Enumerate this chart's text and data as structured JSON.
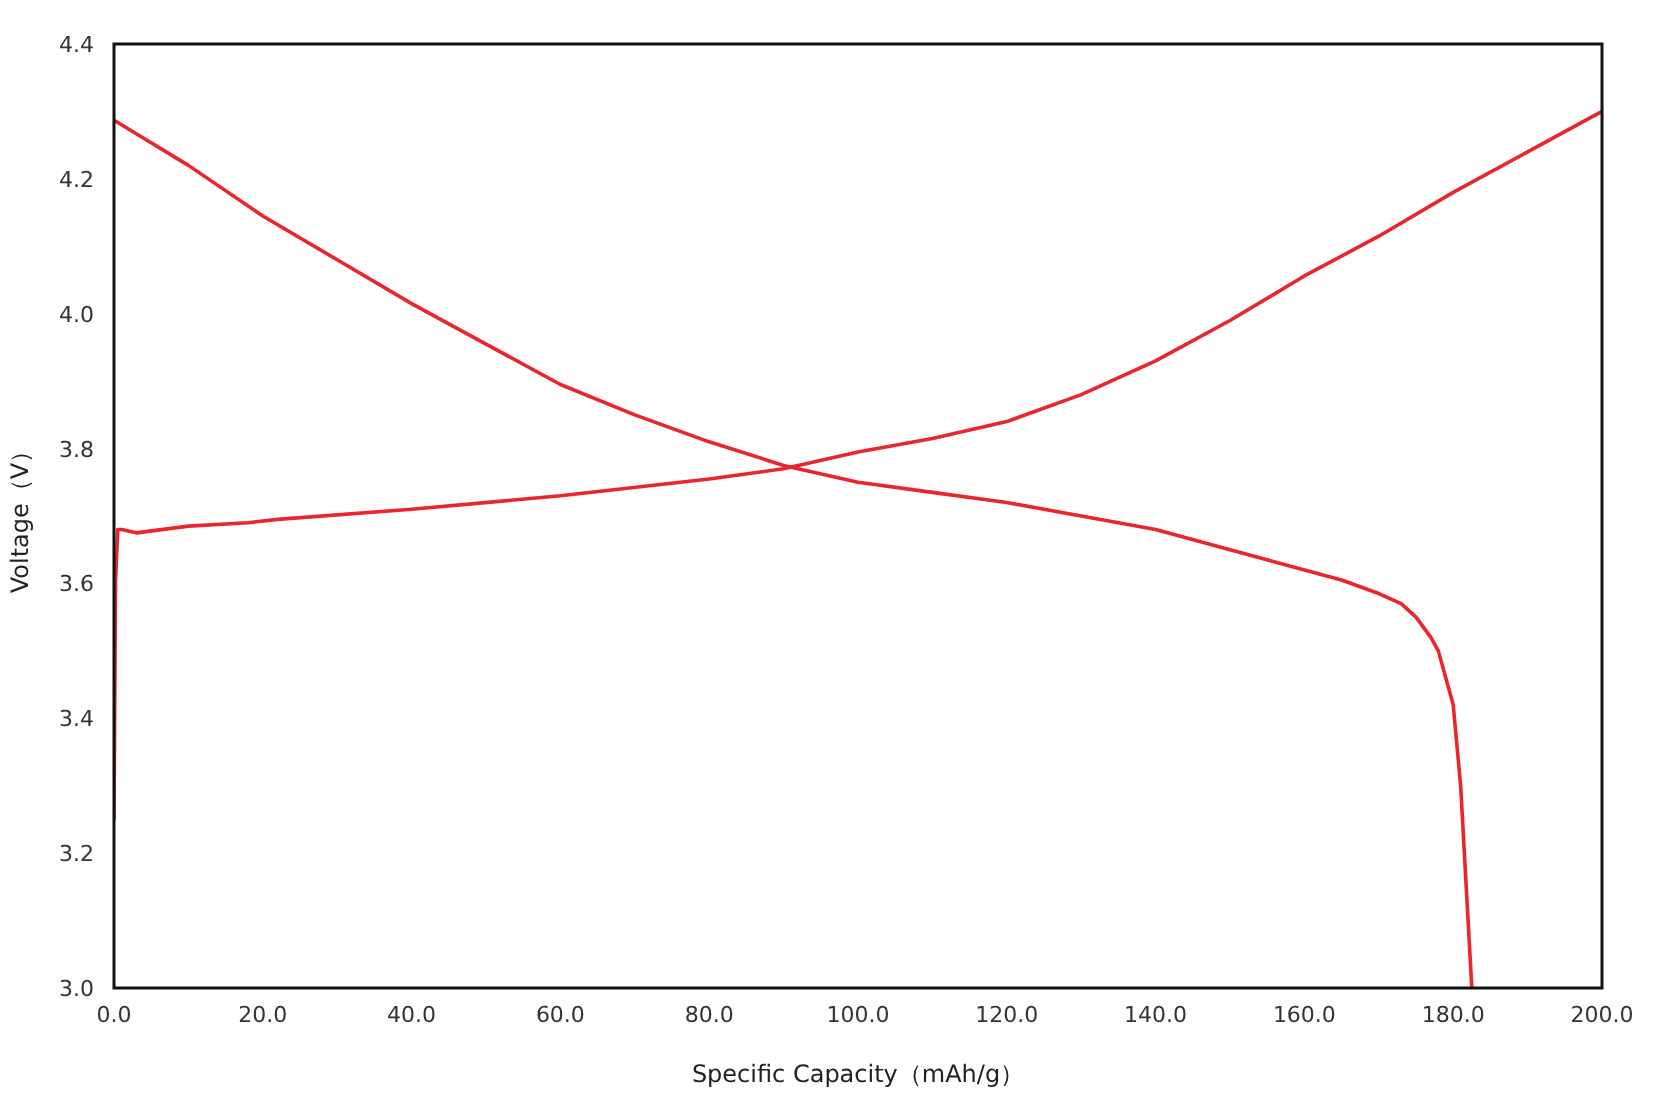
{
  "chart_data": {
    "type": "line",
    "xlabel": "Specific Capacity（mAh/g）",
    "ylabel": "Voltage（V）",
    "xlim": [
      0,
      200
    ],
    "ylim": [
      3.0,
      4.4
    ],
    "xticks": [
      {
        "value": 0,
        "label": "0.0"
      },
      {
        "value": 20,
        "label": "20.0"
      },
      {
        "value": 40,
        "label": "40.0"
      },
      {
        "value": 60,
        "label": "60.0"
      },
      {
        "value": 80,
        "label": "80.0"
      },
      {
        "value": 100,
        "label": "100.0"
      },
      {
        "value": 120,
        "label": "120.0"
      },
      {
        "value": 140,
        "label": "140.0"
      },
      {
        "value": 160,
        "label": "160.0"
      },
      {
        "value": 180,
        "label": "180.0"
      },
      {
        "value": 200,
        "label": "200.0"
      }
    ],
    "yticks": [
      {
        "value": 3.0,
        "label": "3.0"
      },
      {
        "value": 3.2,
        "label": "3.2"
      },
      {
        "value": 3.4,
        "label": "3.4"
      },
      {
        "value": 3.6,
        "label": "3.6"
      },
      {
        "value": 3.8,
        "label": "3.8"
      },
      {
        "value": 4.0,
        "label": "4.0"
      },
      {
        "value": 4.2,
        "label": "4.2"
      },
      {
        "value": 4.4,
        "label": "4.4"
      }
    ],
    "marker": "none",
    "line_style": "solid",
    "series": [
      {
        "color": "#e8262b",
        "x": [
          0,
          0.2,
          0.5,
          1,
          3,
          10,
          18,
          22,
          40,
          60,
          80,
          90,
          100,
          110,
          120,
          130,
          140,
          150,
          160,
          170,
          180,
          190,
          200
        ],
        "values": [
          3.25,
          3.6,
          3.68,
          3.68,
          3.675,
          3.685,
          3.69,
          3.695,
          3.71,
          3.73,
          3.755,
          3.77,
          3.795,
          3.815,
          3.84,
          3.88,
          3.93,
          3.99,
          4.056,
          4.115,
          4.18,
          4.24,
          4.3
        ]
      },
      {
        "color": "#e8262b",
        "x": [
          0,
          10,
          20,
          30,
          40,
          50,
          60,
          70,
          80,
          90,
          100,
          110,
          120,
          130,
          140,
          150,
          160,
          165,
          170,
          173,
          175,
          177,
          178,
          179,
          180,
          181,
          182,
          182.5
        ],
        "values": [
          4.287,
          4.22,
          4.145,
          4.08,
          4.015,
          3.955,
          3.895,
          3.85,
          3.81,
          3.775,
          3.75,
          3.735,
          3.72,
          3.7,
          3.68,
          3.65,
          3.62,
          3.605,
          3.585,
          3.57,
          3.55,
          3.52,
          3.5,
          3.46,
          3.42,
          3.3,
          3.1,
          3.0
        ]
      }
    ]
  }
}
